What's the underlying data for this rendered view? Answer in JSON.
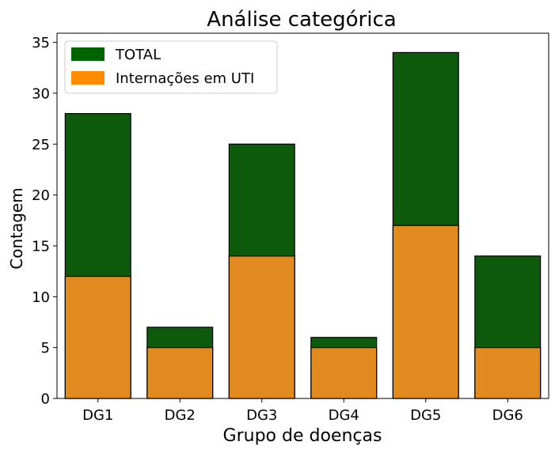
{
  "chart_data": {
    "type": "bar",
    "title": "Análise categórica",
    "xlabel": "Grupo de doenças",
    "ylabel": "Contagem",
    "categories": [
      "DG1",
      "DG2",
      "DG3",
      "DG4",
      "DG5",
      "DG6"
    ],
    "series": [
      {
        "name": "TOTAL",
        "color": "#0d5a0d",
        "values": [
          28,
          7,
          25,
          6,
          34,
          14
        ]
      },
      {
        "name": "Internações em UTI",
        "color": "#e08a20",
        "values": [
          12,
          5,
          14,
          5,
          17,
          5
        ]
      }
    ],
    "ylim": [
      0,
      35.9
    ],
    "yticks": [
      0,
      5,
      10,
      15,
      20,
      25,
      30,
      35
    ],
    "legend": {
      "placement": "top-left",
      "entries": [
        {
          "label": "TOTAL",
          "color": "#006400"
        },
        {
          "label": "Internações em UTI",
          "color": "#ff8c00"
        }
      ]
    },
    "grid": false,
    "bar_edge_color": "#000000"
  }
}
